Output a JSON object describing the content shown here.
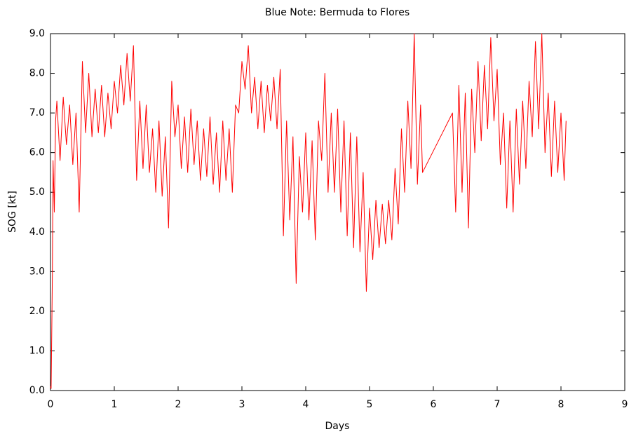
{
  "chart_data": {
    "type": "line",
    "title": "Blue Note: Bermuda to Flores",
    "x_label": "Days",
    "y_label": "SOG [kt]",
    "color": "#ff0000",
    "xlim": [
      0,
      9
    ],
    "xticks": [
      0,
      1,
      2,
      3,
      4,
      5,
      6,
      7,
      8,
      9
    ],
    "ylim": [
      0,
      9
    ],
    "yticks": [
      {
        "value": 0,
        "label": "0.0"
      },
      {
        "value": 1,
        "label": "1.0"
      },
      {
        "value": 2,
        "label": "2.0"
      },
      {
        "value": 3,
        "label": "3.0"
      },
      {
        "value": 4,
        "label": "4.0"
      },
      {
        "value": 5,
        "label": "5.0"
      },
      {
        "value": 6,
        "label": "6.0"
      },
      {
        "value": 7,
        "label": "7.0"
      },
      {
        "value": 8,
        "label": "8.0"
      },
      {
        "value": 9,
        "label": "9.0"
      }
    ],
    "grid": false,
    "x": [
      0,
      0.01,
      0.02,
      0.03,
      0.04,
      0.06,
      0.08,
      0.1,
      0.15,
      0.2,
      0.25,
      0.3,
      0.35,
      0.4,
      0.45,
      0.5,
      0.55,
      0.6,
      0.65,
      0.7,
      0.75,
      0.8,
      0.85,
      0.9,
      0.95,
      1.0,
      1.05,
      1.1,
      1.15,
      1.2,
      1.25,
      1.3,
      1.35,
      1.4,
      1.45,
      1.5,
      1.55,
      1.6,
      1.65,
      1.7,
      1.75,
      1.8,
      1.85,
      1.9,
      1.95,
      2.0,
      2.05,
      2.1,
      2.15,
      2.2,
      2.25,
      2.3,
      2.35,
      2.4,
      2.45,
      2.5,
      2.55,
      2.6,
      2.65,
      2.7,
      2.75,
      2.8,
      2.85,
      2.9,
      2.95,
      3.0,
      3.05,
      3.1,
      3.15,
      3.2,
      3.25,
      3.3,
      3.35,
      3.4,
      3.45,
      3.5,
      3.55,
      3.6,
      3.65,
      3.7,
      3.75,
      3.8,
      3.85,
      3.9,
      3.95,
      4.0,
      4.05,
      4.1,
      4.15,
      4.2,
      4.25,
      4.3,
      4.35,
      4.4,
      4.45,
      4.5,
      4.55,
      4.6,
      4.65,
      4.7,
      4.75,
      4.8,
      4.85,
      4.9,
      4.95,
      5.0,
      5.05,
      5.1,
      5.15,
      5.2,
      5.25,
      5.3,
      5.35,
      5.4,
      5.45,
      5.5,
      5.55,
      5.6,
      5.65,
      5.7,
      5.75,
      5.8,
      5.83,
      6.3,
      6.35,
      6.4,
      6.45,
      6.5,
      6.55,
      6.6,
      6.65,
      6.7,
      6.75,
      6.8,
      6.85,
      6.9,
      6.95,
      7.0,
      7.05,
      7.1,
      7.15,
      7.2,
      7.25,
      7.3,
      7.35,
      7.4,
      7.45,
      7.5,
      7.55,
      7.6,
      7.65,
      7.7,
      7.75,
      7.8,
      7.85,
      7.9,
      7.95,
      8.0,
      8.05,
      8.08
    ],
    "values": [
      0.1,
      0.05,
      1.5,
      3.0,
      5.8,
      4.5,
      6.8,
      7.3,
      5.8,
      7.4,
      6.2,
      7.2,
      5.7,
      7.0,
      4.5,
      8.3,
      6.5,
      8.0,
      6.4,
      7.6,
      6.5,
      7.7,
      6.4,
      7.5,
      6.6,
      7.8,
      7.0,
      8.2,
      7.2,
      8.5,
      7.3,
      8.7,
      5.3,
      7.3,
      5.6,
      7.2,
      5.5,
      6.6,
      5.0,
      6.8,
      4.9,
      6.4,
      4.1,
      7.8,
      6.4,
      7.2,
      5.6,
      6.9,
      5.5,
      7.1,
      5.7,
      6.8,
      5.3,
      6.6,
      5.4,
      6.9,
      5.2,
      6.5,
      5.0,
      6.8,
      5.3,
      6.6,
      5.0,
      7.2,
      7.0,
      8.3,
      7.6,
      8.7,
      7.0,
      7.9,
      6.6,
      7.8,
      6.5,
      7.7,
      6.8,
      7.9,
      6.6,
      8.1,
      3.9,
      6.8,
      4.3,
      6.4,
      2.7,
      5.9,
      4.5,
      6.5,
      4.3,
      6.3,
      3.8,
      6.8,
      5.8,
      8.0,
      5.0,
      7.0,
      5.0,
      7.1,
      4.5,
      6.8,
      3.9,
      6.5,
      3.6,
      6.4,
      3.5,
      5.5,
      2.5,
      4.6,
      3.3,
      4.8,
      3.6,
      4.7,
      3.7,
      4.8,
      3.8,
      5.6,
      4.2,
      6.6,
      5.0,
      7.3,
      5.6,
      9.0,
      5.2,
      7.2,
      5.5,
      7.0,
      4.5,
      7.7,
      5.0,
      7.5,
      4.1,
      7.6,
      6.0,
      8.3,
      6.3,
      8.2,
      6.6,
      8.9,
      6.8,
      8.1,
      5.7,
      7.0,
      4.6,
      6.8,
      4.5,
      7.1,
      5.2,
      7.3,
      5.6,
      7.8,
      6.4,
      8.8,
      6.6,
      9.0,
      6.0,
      7.5,
      5.4,
      7.3,
      5.5,
      7.0,
      5.3,
      6.8
    ]
  }
}
